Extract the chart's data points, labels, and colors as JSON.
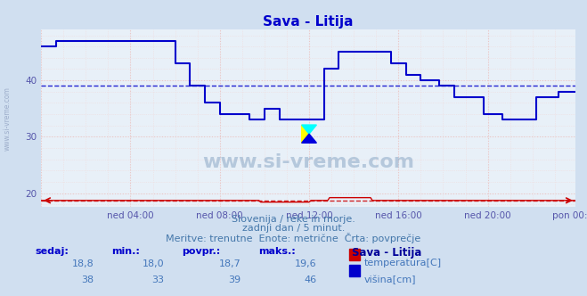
{
  "title": "Sava - Litija",
  "bg_color": "#d0dff0",
  "plot_bg_color": "#e8f0f8",
  "title_color": "#0000cc",
  "tick_color": "#5555aa",
  "subtitle_color": "#4477aa",
  "table_header_color": "#0000cc",
  "table_val_color": "#4477bb",
  "legend_title_color": "#000099",
  "temp_color": "#cc0000",
  "visina_color": "#0000cc",
  "grid_major_color": "#e8c8c8",
  "grid_minor_color": "#f0dada",
  "xlabel_ticks": [
    "ned 04:00",
    "ned 08:00",
    "ned 12:00",
    "ned 16:00",
    "ned 20:00",
    "pon 00:00"
  ],
  "yticks": [
    20,
    30,
    40
  ],
  "ylim": [
    17.5,
    49
  ],
  "xlim": [
    0,
    287
  ],
  "avg_visina": 39,
  "avg_temp": 18.7,
  "subtitle1": "Slovenija / reke in morje.",
  "subtitle2": "zadnji dan / 5 minut.",
  "subtitle3": "Meritve: trenutne  Enote: metrične  Črta: povprečje",
  "legend_title": "Sava - Litija",
  "legend_items": [
    {
      "label": "temperatura[C]",
      "color": "#cc0000"
    },
    {
      "label": "višina[cm]",
      "color": "#0000cc"
    }
  ],
  "table_headers": [
    "sedaj:",
    "min.:",
    "povpr.:",
    "maks.:"
  ],
  "table_temp": [
    "18,8",
    "18,0",
    "18,7",
    "19,6"
  ],
  "table_visina": [
    "38",
    "33",
    "39",
    "46"
  ],
  "watermark": "www.si-vreme.com",
  "side_label": "www.si-vreme.com"
}
